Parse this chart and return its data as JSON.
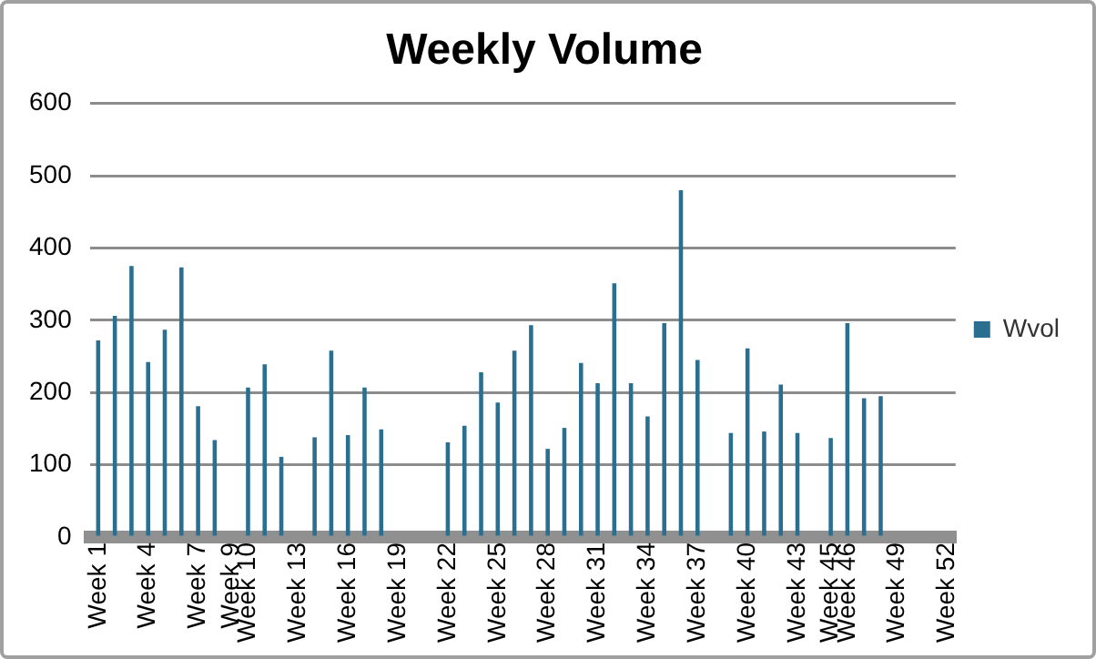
{
  "chart_data": {
    "type": "bar",
    "title": "Weekly Volume",
    "categories": [
      "Week 1",
      null,
      null,
      "Week 4",
      null,
      null,
      "Week 7",
      null,
      "Week 9",
      "Week 10",
      null,
      null,
      "Week 13",
      null,
      null,
      "Week 16",
      null,
      null,
      "Week 19",
      null,
      null,
      "Week 22",
      null,
      null,
      "Week 25",
      null,
      null,
      "Week 28",
      null,
      null,
      "Week 31",
      null,
      null,
      "Week 34",
      null,
      null,
      "Week 37",
      null,
      null,
      "Week 40",
      null,
      null,
      "Week 43",
      null,
      "Week 45",
      "Week 46",
      null,
      null,
      "Week 49",
      null,
      null,
      "Week 52"
    ],
    "series": [
      {
        "name": "Wvol",
        "color": "#2a6f8f",
        "values": [
          272,
          306,
          375,
          242,
          287,
          373,
          181,
          134,
          null,
          207,
          239,
          111,
          null,
          138,
          258,
          141,
          207,
          149,
          null,
          null,
          null,
          131,
          154,
          228,
          186,
          258,
          293,
          122,
          151,
          241,
          213,
          351,
          213,
          167,
          296,
          480,
          245,
          null,
          144,
          261,
          146,
          211,
          144,
          null,
          137,
          296,
          192,
          195,
          null,
          null,
          null,
          null
        ]
      }
    ],
    "ylim": [
      0,
      600
    ],
    "yticks": [
      0,
      100,
      200,
      300,
      400,
      500,
      600
    ],
    "grid": "y",
    "legend": "right"
  }
}
